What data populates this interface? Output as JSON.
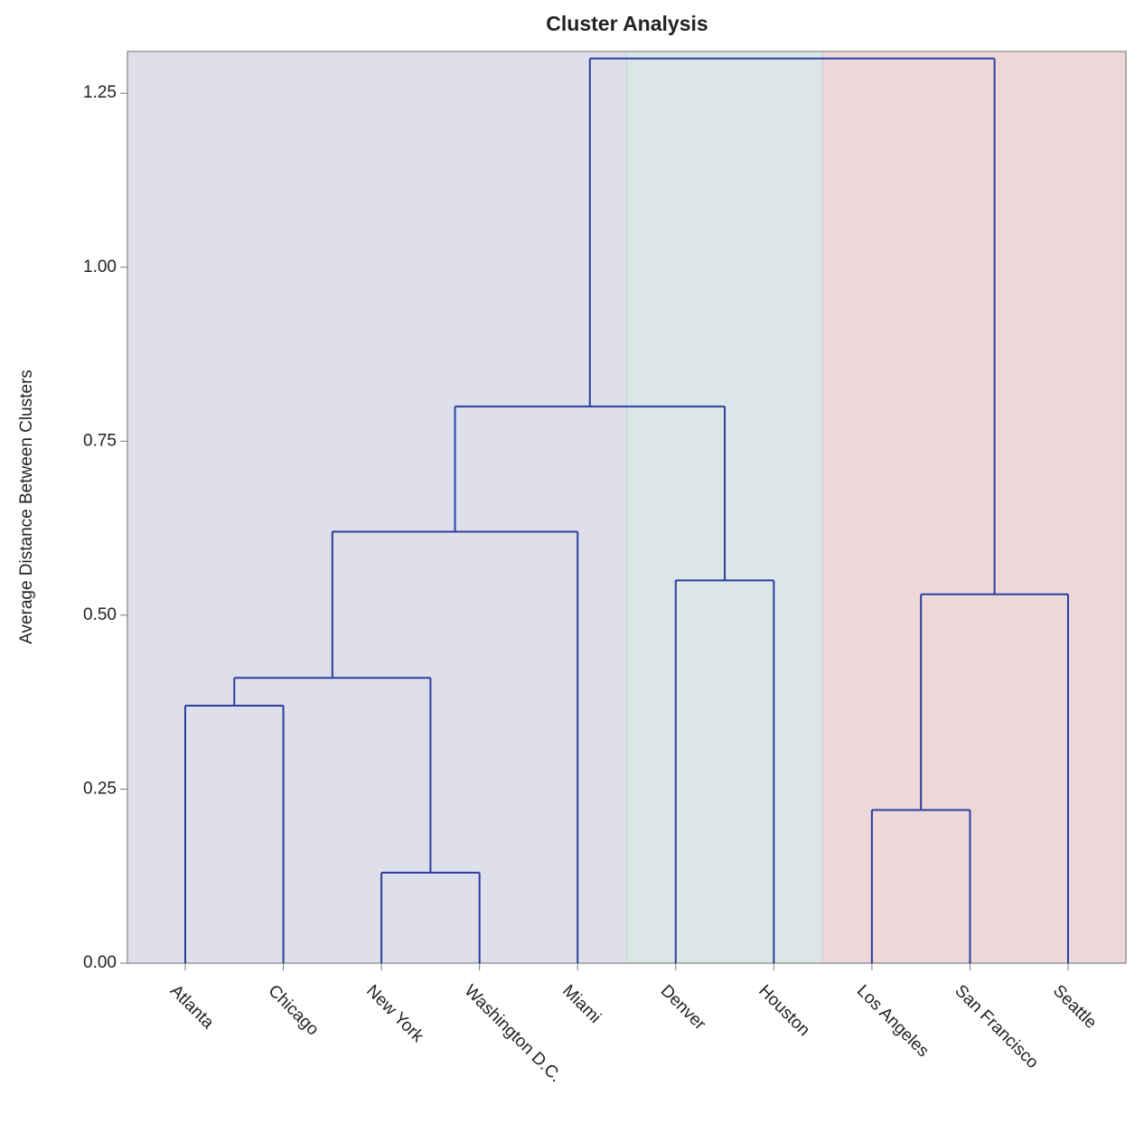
{
  "chart_data": {
    "type": "dendrogram",
    "title": "Cluster Analysis",
    "y_label": "Average Distance Between Clusters",
    "categories": [
      "Atlanta",
      "Chicago",
      "New York",
      "Washington D.C.",
      "Miami",
      "Denver",
      "Houston",
      "Los Angeles",
      "San Francisco",
      "Seattle"
    ],
    "merges": [
      {
        "children": [
          0,
          1
        ],
        "height": 0.37
      },
      {
        "children": [
          2,
          3
        ],
        "height": 0.13
      },
      {
        "children": [
          10,
          11
        ],
        "height": 0.41
      },
      {
        "children": [
          12,
          4
        ],
        "height": 0.62
      },
      {
        "children": [
          5,
          6
        ],
        "height": 0.55
      },
      {
        "children": [
          7,
          8
        ],
        "height": 0.22
      },
      {
        "children": [
          15,
          9
        ],
        "height": 0.53
      },
      {
        "children": [
          13,
          14
        ],
        "height": 0.8
      },
      {
        "children": [
          17,
          16
        ],
        "height": 1.3
      }
    ],
    "clusters": [
      {
        "leaves": [
          0,
          1,
          2,
          3,
          4
        ],
        "color": "#dedfeb"
      },
      {
        "leaves": [
          5,
          6
        ],
        "color": "#dbe6e6"
      },
      {
        "leaves": [
          7,
          8,
          9
        ],
        "color": "#ecd8d9"
      }
    ],
    "line_color": "#2b3ea0",
    "ylim": [
      0,
      1.31
    ],
    "yticks": [
      {
        "value": 0,
        "label": "0.00"
      },
      {
        "value": 0.25,
        "label": "0.25"
      },
      {
        "value": 0.5,
        "label": "0.50"
      },
      {
        "value": 0.75,
        "label": "0.75"
      },
      {
        "value": 1,
        "label": "1.00"
      },
      {
        "value": 1.25,
        "label": "1.25"
      }
    ]
  }
}
